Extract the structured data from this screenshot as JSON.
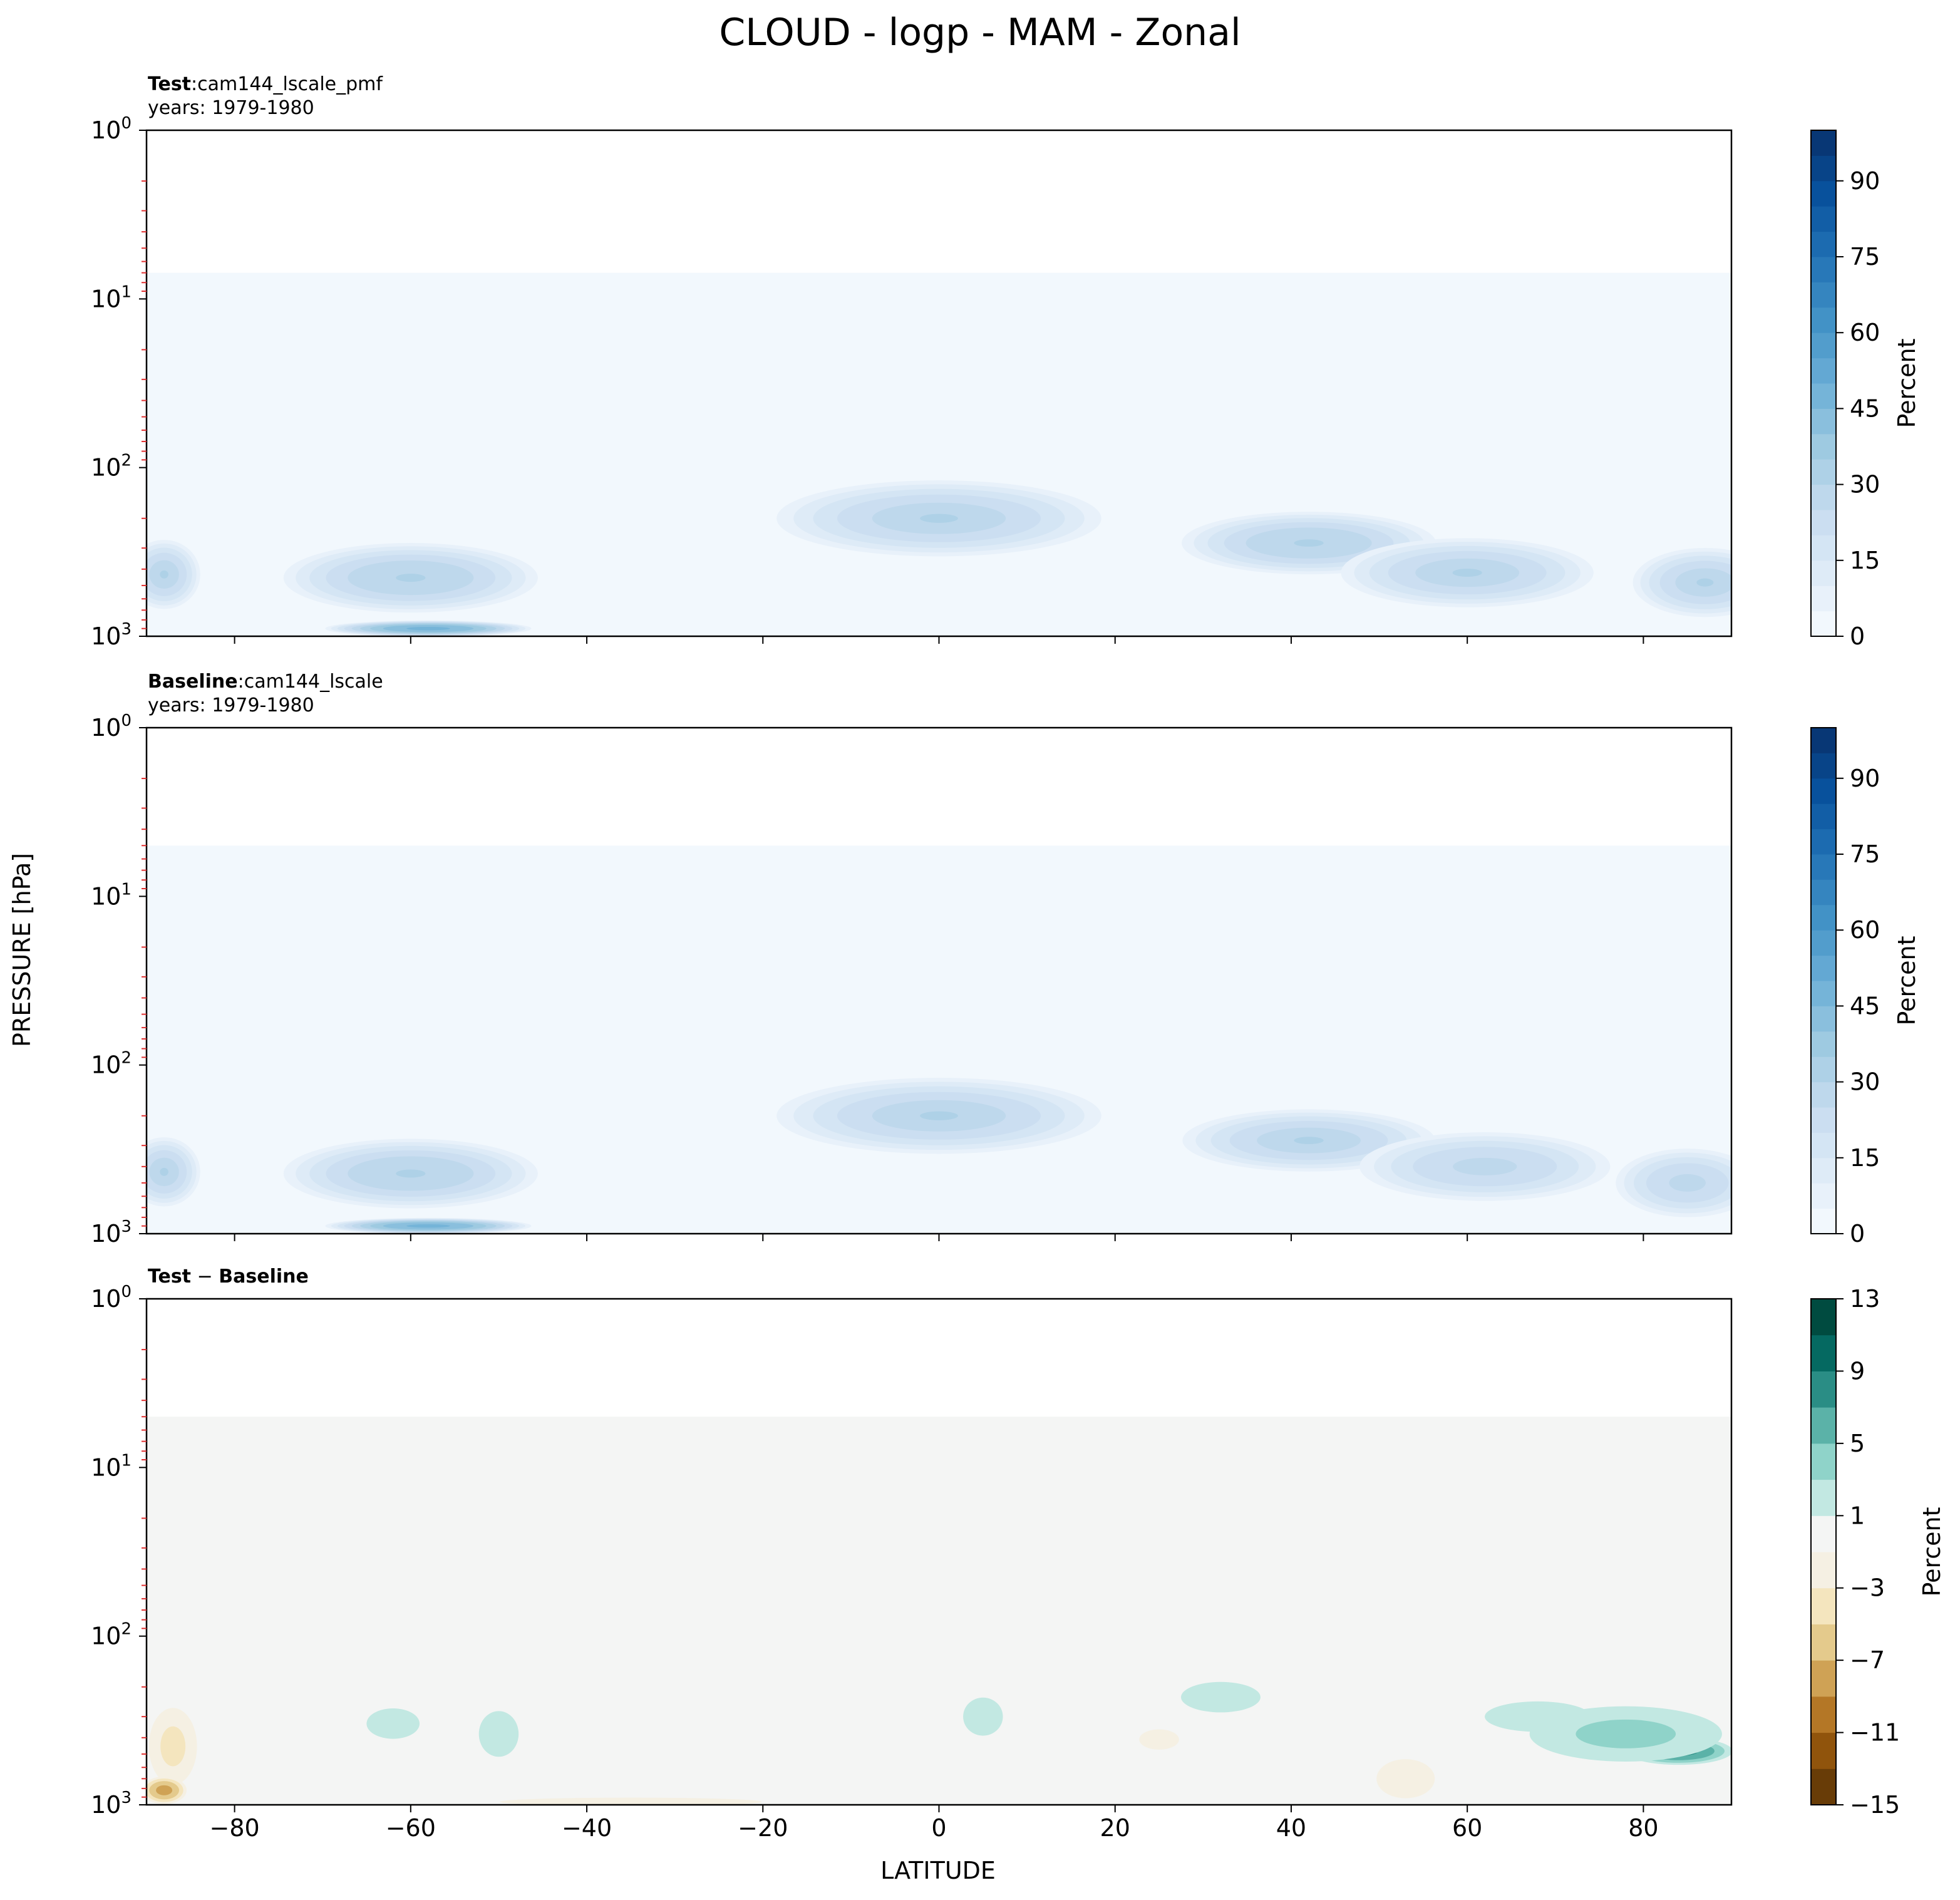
{
  "figure": {
    "title": "CLOUD - logp - MAM - Zonal",
    "ylabel": "PRESSURE [hPa]",
    "xlabel": "LATITUDE",
    "x_ticks": [
      -80,
      -60,
      -40,
      -20,
      0,
      20,
      40,
      60,
      80
    ]
  },
  "chart_data": [
    {
      "type": "heatmap",
      "name_bold": "Test",
      "name_sep": ":",
      "name_rest": "cam144_lscale_pmf",
      "years": "years: 1979-1980",
      "xlim": [
        -90,
        90
      ],
      "ylim": [
        1000,
        1
      ],
      "yscale": "log",
      "y_tick_labels": [
        {
          "value": 1,
          "base": "10",
          "exp": "0"
        },
        {
          "value": 10,
          "base": "10",
          "exp": "1"
        },
        {
          "value": 100,
          "base": "10",
          "exp": "2"
        },
        {
          "value": 1000,
          "base": "10",
          "exp": "3"
        }
      ],
      "colormap": "Blues",
      "colorbar": {
        "label": "Percent",
        "min": 0,
        "max": 100,
        "step": 5,
        "ticks": [
          0,
          15,
          30,
          45,
          60,
          75,
          90
        ]
      },
      "background_value": 2.5,
      "background_top_hpa": 7,
      "features": [
        {
          "lat": 0,
          "p": 200,
          "value": 30,
          "dlat": 18,
          "dlogp": 0.22
        },
        {
          "lat": 42,
          "p": 280,
          "value": 32,
          "dlat": 14,
          "dlogp": 0.18
        },
        {
          "lat": 60,
          "p": 420,
          "value": 30,
          "dlat": 14,
          "dlogp": 0.2
        },
        {
          "lat": 87,
          "p": 480,
          "value": 30,
          "dlat": 8,
          "dlogp": 0.2
        },
        {
          "lat": -60,
          "p": 450,
          "value": 32,
          "dlat": 14,
          "dlogp": 0.2
        },
        {
          "lat": -58,
          "p": 900,
          "value": 48,
          "dlat": 11,
          "dlogp": 0.045
        },
        {
          "lat": -88,
          "p": 430,
          "value": 30,
          "dlat": 4,
          "dlogp": 0.2
        }
      ]
    },
    {
      "type": "heatmap",
      "name_bold": "Baseline",
      "name_sep": ":",
      "name_rest": "cam144_lscale",
      "years": "years: 1979-1980",
      "xlim": [
        -90,
        90
      ],
      "ylim": [
        1000,
        1
      ],
      "yscale": "log",
      "y_tick_labels": [
        {
          "value": 1,
          "base": "10",
          "exp": "0"
        },
        {
          "value": 10,
          "base": "10",
          "exp": "1"
        },
        {
          "value": 100,
          "base": "10",
          "exp": "2"
        },
        {
          "value": 1000,
          "base": "10",
          "exp": "3"
        }
      ],
      "colormap": "Blues",
      "colorbar": {
        "label": "Percent",
        "min": 0,
        "max": 100,
        "step": 5,
        "ticks": [
          0,
          15,
          30,
          45,
          60,
          75,
          90
        ]
      },
      "background_value": 2.5,
      "background_top_hpa": 5,
      "features": [
        {
          "lat": 0,
          "p": 200,
          "value": 30,
          "dlat": 18,
          "dlogp": 0.22
        },
        {
          "lat": 42,
          "p": 280,
          "value": 30,
          "dlat": 14,
          "dlogp": 0.18
        },
        {
          "lat": 62,
          "p": 400,
          "value": 28,
          "dlat": 14,
          "dlogp": 0.2
        },
        {
          "lat": 85,
          "p": 500,
          "value": 28,
          "dlat": 8,
          "dlogp": 0.2
        },
        {
          "lat": -60,
          "p": 440,
          "value": 32,
          "dlat": 14,
          "dlogp": 0.2
        },
        {
          "lat": -58,
          "p": 900,
          "value": 48,
          "dlat": 11,
          "dlogp": 0.045
        },
        {
          "lat": -88,
          "p": 430,
          "value": 30,
          "dlat": 4,
          "dlogp": 0.2
        }
      ]
    },
    {
      "type": "heatmap",
      "name_bold": "Test",
      "name_sep": " − ",
      "name_rest": "Baseline",
      "years": "",
      "xlim": [
        -90,
        90
      ],
      "ylim": [
        1000,
        1
      ],
      "yscale": "log",
      "y_tick_labels": [
        {
          "value": 1,
          "base": "10",
          "exp": "0"
        },
        {
          "value": 10,
          "base": "10",
          "exp": "1"
        },
        {
          "value": 100,
          "base": "10",
          "exp": "2"
        },
        {
          "value": 1000,
          "base": "10",
          "exp": "3"
        }
      ],
      "colormap": "BrBG",
      "colorbar": {
        "label": "Percent",
        "levels": [
          -15,
          -13,
          -11,
          -9,
          -7,
          -5,
          -3,
          -1,
          1,
          3,
          5,
          7,
          9,
          11,
          13
        ],
        "ticks": [
          -15,
          -11,
          -7,
          -3,
          1,
          5,
          9,
          13
        ],
        "tick_labels": [
          "−15",
          "−11",
          "−7",
          "−3",
          "1",
          "5",
          "9",
          "13"
        ]
      },
      "background_value": 0,
      "background_top_hpa": 5,
      "features": [
        {
          "lat": 84,
          "p": 480,
          "value": 8,
          "dlat": 6,
          "dlogp": 0.08
        },
        {
          "lat": 78,
          "p": 380,
          "value": 4,
          "dlat": 12,
          "dlogp": 0.18
        },
        {
          "lat": 68,
          "p": 300,
          "value": 2.5,
          "dlat": 8,
          "dlogp": 0.12
        },
        {
          "lat": 32,
          "p": 230,
          "value": 2.5,
          "dlat": 6,
          "dlogp": 0.12
        },
        {
          "lat": 5,
          "p": 300,
          "value": 2.5,
          "dlat": 3,
          "dlogp": 0.15
        },
        {
          "lat": -50,
          "p": 380,
          "value": 2.5,
          "dlat": 3,
          "dlogp": 0.18
        },
        {
          "lat": -62,
          "p": 330,
          "value": 2.5,
          "dlat": 4,
          "dlogp": 0.12
        },
        {
          "lat": -87,
          "p": 450,
          "value": -4,
          "dlat": 3,
          "dlogp": 0.25
        },
        {
          "lat": -88,
          "p": 820,
          "value": -8,
          "dlat": 2.5,
          "dlogp": 0.08
        },
        {
          "lat": 53,
          "p": 700,
          "value": -3,
          "dlat": 4,
          "dlogp": 0.14
        },
        {
          "lat": -35,
          "p": 960,
          "value": -3,
          "dlat": 18,
          "dlogp": 0.03
        },
        {
          "lat": 25,
          "p": 410,
          "value": -2.5,
          "dlat": 3,
          "dlogp": 0.08
        }
      ]
    }
  ]
}
